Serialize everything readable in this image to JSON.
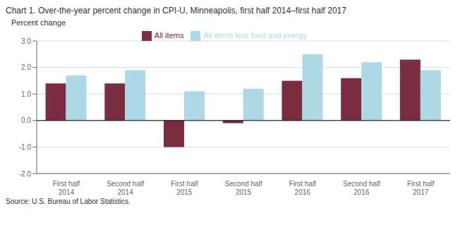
{
  "chart_data": {
    "type": "bar",
    "title": "Chart 1. Over-the-year percent change in CPI-U, Minneapolis, first half 2014–first half 2017",
    "ylabel": "Percent change",
    "annotations": [
      "Source: U.S. Bureau of Labor Statistics."
    ],
    "categories": [
      "First half 2014",
      "Second half 2014",
      "First half 2015",
      "Second half 2015",
      "First half 2016",
      "Second half 2016",
      "First half 2017"
    ],
    "series": [
      {
        "name": "All items",
        "color": "#7b2d42",
        "values": [
          1.4,
          1.4,
          -1.0,
          -0.1,
          1.5,
          1.6,
          2.3
        ]
      },
      {
        "name": "All items less food and energy",
        "color": "#add8e6",
        "values": [
          1.7,
          1.9,
          1.1,
          1.2,
          2.5,
          2.2,
          1.9
        ]
      }
    ],
    "ylim": [
      -2.0,
      3.0
    ],
    "yticks": [
      {
        "value": -2.0,
        "label": "-2.0"
      },
      {
        "value": -1.0,
        "label": "-1.0"
      },
      {
        "value": 0.0,
        "label": "0.0"
      },
      {
        "value": 1.0,
        "label": "1.0"
      },
      {
        "value": 2.0,
        "label": "2.0"
      },
      {
        "value": 3.0,
        "label": "3.0"
      }
    ],
    "grid": true,
    "legend": "upper center"
  }
}
